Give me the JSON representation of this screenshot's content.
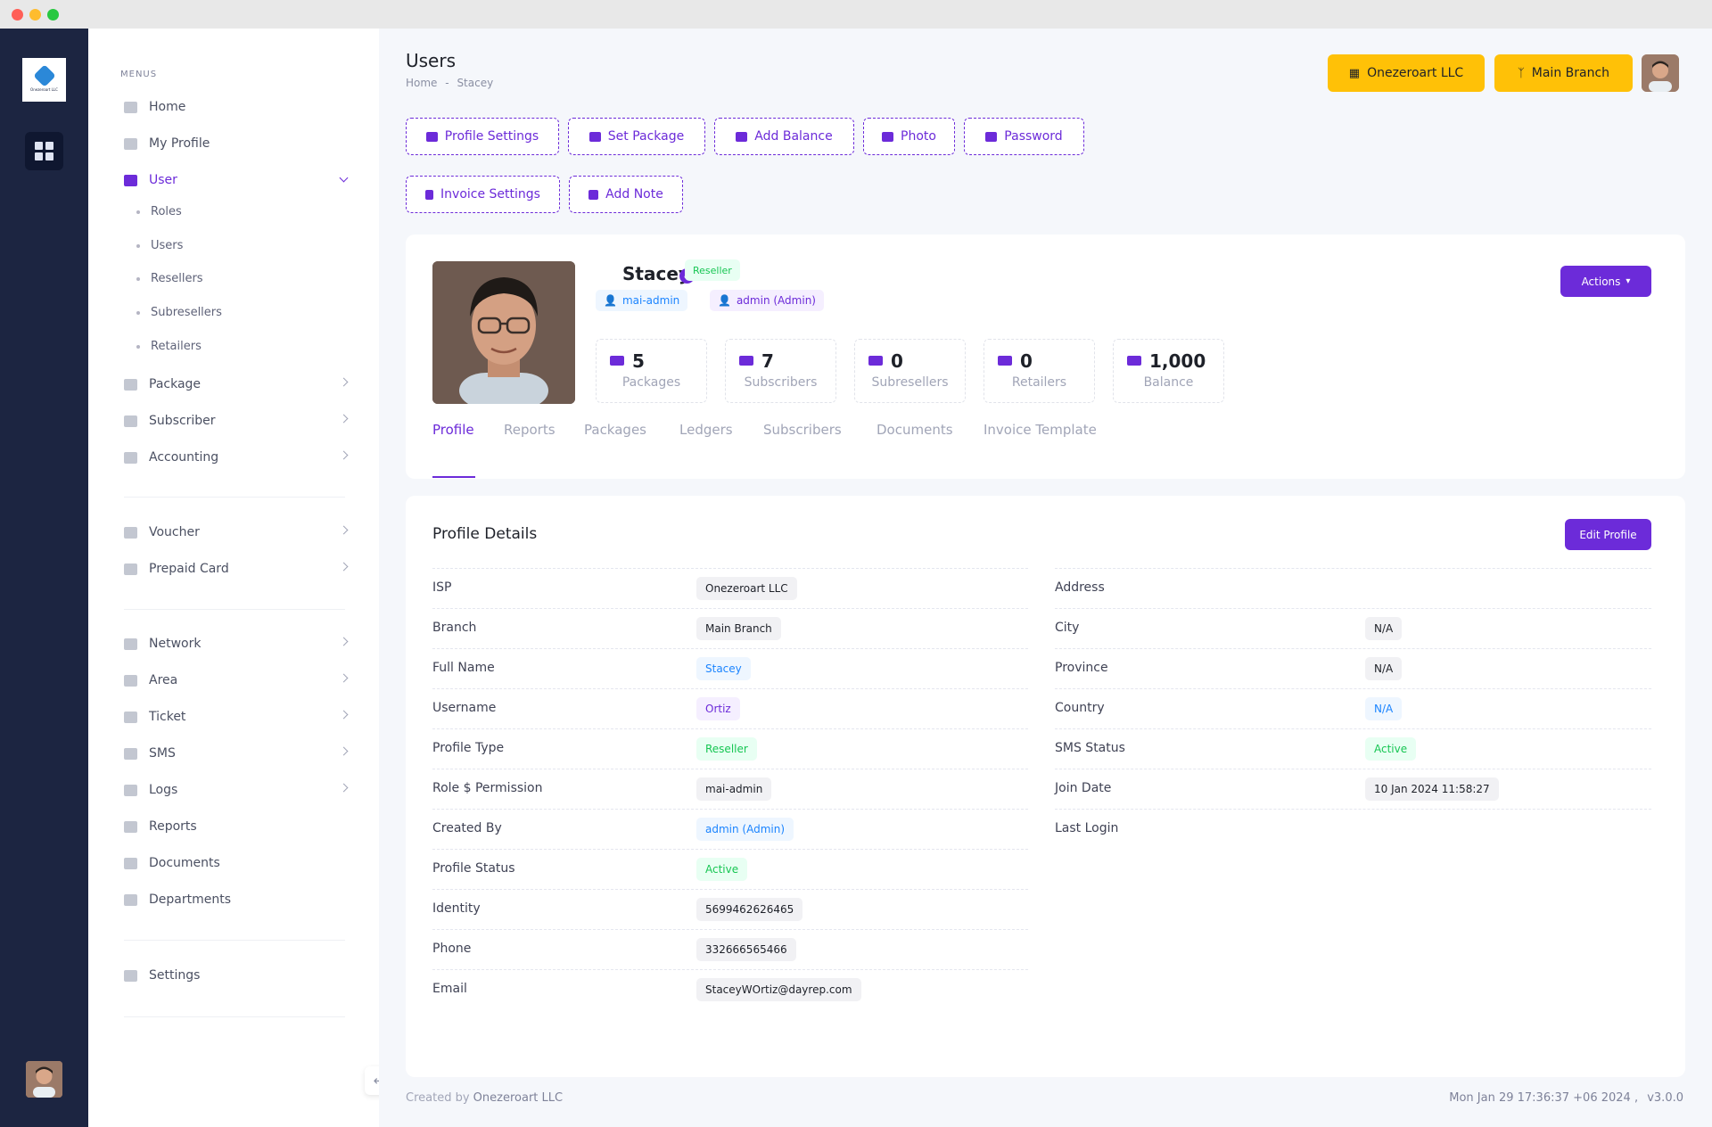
{
  "window": {
    "colors": {
      "close": "#ff5f57",
      "min": "#febc2e",
      "max": "#28c840"
    }
  },
  "rail": {
    "logo_text": "Onezeroart LLC"
  },
  "sidebar": {
    "menus_label": "MENUS",
    "items": [
      {
        "label": "Home"
      },
      {
        "label": "My Profile"
      },
      {
        "label": "User"
      },
      {
        "label": "Package"
      },
      {
        "label": "Subscriber"
      },
      {
        "label": "Accounting"
      },
      {
        "label": "Voucher"
      },
      {
        "label": "Prepaid Card"
      },
      {
        "label": "Network"
      },
      {
        "label": "Area"
      },
      {
        "label": "Ticket"
      },
      {
        "label": "SMS"
      },
      {
        "label": "Logs"
      },
      {
        "label": "Reports"
      },
      {
        "label": "Documents"
      },
      {
        "label": "Departments"
      },
      {
        "label": "Settings"
      }
    ],
    "user_sub": [
      "Roles",
      "Users",
      "Resellers",
      "Subresellers",
      "Retailers"
    ]
  },
  "header": {
    "title": "Users",
    "breadcrumb_home": "Home",
    "breadcrumb_sep": "-",
    "breadcrumb_current": "Stacey",
    "company_button": "Onezeroart LLC",
    "branch_button": "Main Branch"
  },
  "actions": [
    "Profile Settings",
    "Set Package",
    "Add Balance",
    "Photo",
    "Password",
    "Invoice Settings",
    "Add Note"
  ],
  "profile": {
    "name": "Stacey",
    "type_badge": "Reseller",
    "role_badge": "mai-admin",
    "creator_badge": "admin (Admin)",
    "actions_label": "Actions",
    "stats": [
      {
        "value": "5",
        "label": "Packages"
      },
      {
        "value": "7",
        "label": "Subscribers"
      },
      {
        "value": "0",
        "label": "Subresellers"
      },
      {
        "value": "0",
        "label": "Retailers"
      },
      {
        "value": "1,000",
        "label": "Balance"
      }
    ],
    "tabs": [
      "Profile",
      "Reports",
      "Packages",
      "Ledgers",
      "Subscribers",
      "Documents",
      "Invoice Template"
    ],
    "active_tab": "Profile"
  },
  "details": {
    "title": "Profile Details",
    "edit_label": "Edit Profile",
    "left": [
      {
        "key": "ISP",
        "value": "Onezeroart LLC",
        "tone": "gray"
      },
      {
        "key": "Branch",
        "value": "Main Branch",
        "tone": "gray"
      },
      {
        "key": "Full Name",
        "value": "Stacey",
        "tone": "blue"
      },
      {
        "key": "Username",
        "value": "Ortiz",
        "tone": "purple"
      },
      {
        "key": "Profile Type",
        "value": "Reseller",
        "tone": "green"
      },
      {
        "key": "Role $ Permission",
        "value": "mai-admin",
        "tone": "gray"
      },
      {
        "key": "Created By",
        "value": "admin (Admin)",
        "tone": "blue"
      },
      {
        "key": "Profile Status",
        "value": "Active",
        "tone": "green"
      },
      {
        "key": "Identity",
        "value": "5699462626465",
        "tone": "gray"
      },
      {
        "key": "Phone",
        "value": "332666565466",
        "tone": "gray"
      },
      {
        "key": "Email",
        "value": "StaceyWOrtiz@dayrep.com",
        "tone": "gray"
      }
    ],
    "right": [
      {
        "key": "Address",
        "value": "",
        "tone": "none"
      },
      {
        "key": "City",
        "value": "N/A",
        "tone": "gray"
      },
      {
        "key": "Province",
        "value": "N/A",
        "tone": "gray"
      },
      {
        "key": "Country",
        "value": "N/A",
        "tone": "blue"
      },
      {
        "key": "SMS Status",
        "value": "Active",
        "tone": "green"
      },
      {
        "key": "Join Date",
        "value": "10 Jan 2024 11:58:27",
        "tone": "gray"
      },
      {
        "key": "Last Login",
        "value": "",
        "tone": "none"
      }
    ]
  },
  "footer": {
    "created_by": "Created by",
    "company": "Onezeroart LLC",
    "datetime": "Mon Jan 29 17:36:37 +06 2024 ,",
    "version": "v3.0.0"
  },
  "colors": {
    "accent": "#6c2bd9",
    "warning": "#ffc107",
    "rail": "#1c2541"
  }
}
